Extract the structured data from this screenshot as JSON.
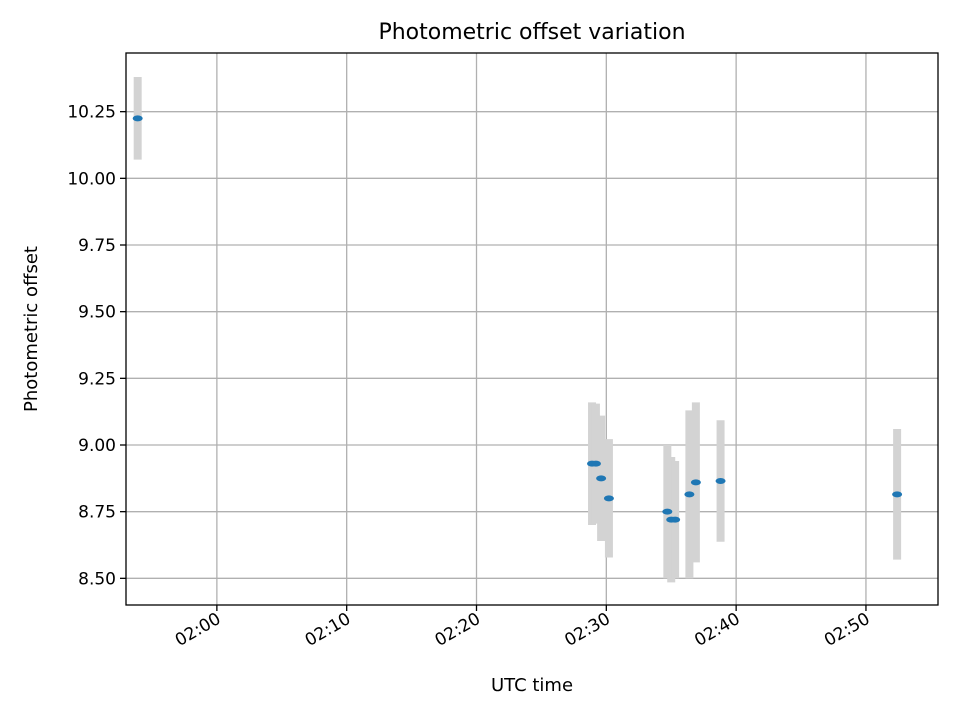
{
  "chart_data": {
    "type": "scatter",
    "title": "Photometric offset variation",
    "xlabel": "UTC time",
    "ylabel": "Photometric offset",
    "grid": true,
    "x_is_time": true,
    "xlim": [
      "01:53:00",
      "02:55:33"
    ],
    "ylim": [
      8.4,
      10.47
    ],
    "x_ticks": [
      "02:00",
      "02:10",
      "02:20",
      "02:30",
      "02:40",
      "02:50"
    ],
    "y_ticks": [
      "8.50",
      "8.75",
      "9.00",
      "9.25",
      "9.50",
      "9.75",
      "10.00",
      "10.25"
    ],
    "colors": {
      "marker": "#1f77b4",
      "errorbar": "#d3d3d3"
    },
    "series": [
      {
        "points": [
          {
            "x": "01:53:54",
            "y": 10.225,
            "yerr": 0.155
          },
          {
            "x": "02:28:54",
            "y": 8.93,
            "yerr": 0.23
          },
          {
            "x": "02:29:12",
            "y": 8.93,
            "yerr": 0.225
          },
          {
            "x": "02:29:36",
            "y": 8.875,
            "yerr": 0.235
          },
          {
            "x": "02:30:12",
            "y": 8.8,
            "yerr": 0.222
          },
          {
            "x": "02:34:42",
            "y": 8.75,
            "yerr": 0.25
          },
          {
            "x": "02:35:00",
            "y": 8.72,
            "yerr": 0.235
          },
          {
            "x": "02:35:18",
            "y": 8.72,
            "yerr": 0.22
          },
          {
            "x": "02:36:24",
            "y": 8.815,
            "yerr": 0.315
          },
          {
            "x": "02:36:54",
            "y": 8.86,
            "yerr": 0.3
          },
          {
            "x": "02:38:48",
            "y": 8.865,
            "yerr": 0.228
          },
          {
            "x": "02:52:24",
            "y": 8.815,
            "yerr": 0.245
          }
        ]
      }
    ]
  }
}
